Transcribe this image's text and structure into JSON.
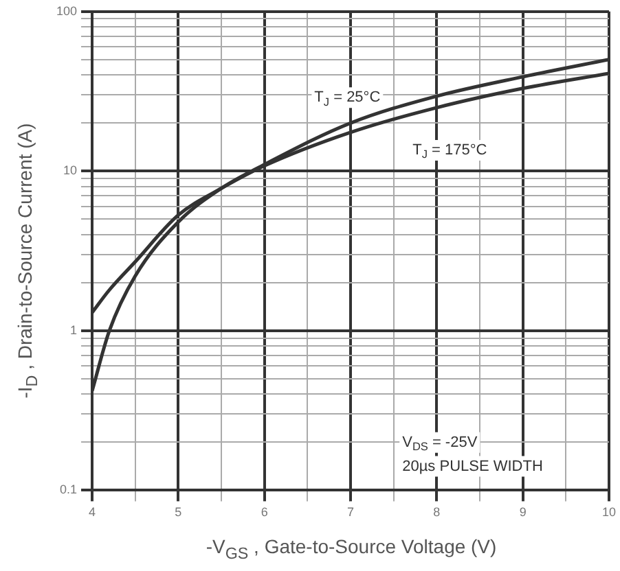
{
  "chart_data": {
    "type": "line",
    "xlabel": "-V$_{GS}$ , Gate-to-Source Voltage (V)",
    "ylabel": "-I$_{D}$ , Drain-to-Source Current (A)",
    "x": [
      4,
      4.2,
      4.5,
      5,
      5.5,
      6,
      7,
      8,
      9,
      10
    ],
    "series": [
      {
        "color": "#333333",
        "values": [
          0.42,
          1.0,
          2.2,
          4.8,
          7.8,
          11,
          20,
          29.5,
          39,
          50
        ]
      },
      {
        "color": "#333333",
        "values": [
          1.3,
          1.8,
          2.7,
          5.3,
          7.8,
          10.8,
          17.5,
          25,
          33,
          41
        ]
      }
    ],
    "annotations": [
      "T$_{J}$ = 25°C",
      "T$_{J}$ = 175°C",
      "V$_{DS}$ = -25V",
      "20µs PULSE WIDTH"
    ],
    "log": "y",
    "grid": true,
    "legend": false,
    "marker": "none",
    "line_style": "solid",
    "xlim": [
      4,
      10
    ],
    "xticks": [
      4,
      {
        "value": 4.5,
        "label": null
      },
      5,
      {
        "value": 5.5,
        "label": null
      },
      6,
      {
        "value": 6.5,
        "label": null
      },
      7,
      {
        "value": 7.5,
        "label": null
      },
      8,
      {
        "value": 8.5,
        "label": null
      },
      9,
      {
        "value": 9.5,
        "label": null
      },
      10
    ],
    "ylim": [
      0.1,
      100
    ],
    "yticks": [
      0.1,
      {
        "value": 0.2,
        "label": null
      },
      {
        "value": 0.3,
        "label": null
      },
      {
        "value": 0.4,
        "label": null
      },
      {
        "value": 0.5,
        "label": null
      },
      {
        "value": 0.6,
        "label": null
      },
      {
        "value": 0.7,
        "label": null
      },
      {
        "value": 0.8,
        "label": null
      },
      {
        "value": 0.9,
        "label": null
      },
      1,
      {
        "value": 2,
        "label": null
      },
      {
        "value": 3,
        "label": null
      },
      {
        "value": 4,
        "label": null
      },
      {
        "value": 5,
        "label": null
      },
      {
        "value": 6,
        "label": null
      },
      {
        "value": 7,
        "label": null
      },
      {
        "value": 8,
        "label": null
      },
      {
        "value": 9,
        "label": null
      },
      10,
      {
        "value": 20,
        "label": null
      },
      {
        "value": 30,
        "label": null
      },
      {
        "value": 40,
        "label": null
      },
      {
        "value": 50,
        "label": null
      },
      {
        "value": 60,
        "label": null
      },
      {
        "value": 70,
        "label": null
      },
      {
        "value": 80,
        "label": null
      },
      {
        "value": 90,
        "label": null
      },
      100
    ]
  }
}
